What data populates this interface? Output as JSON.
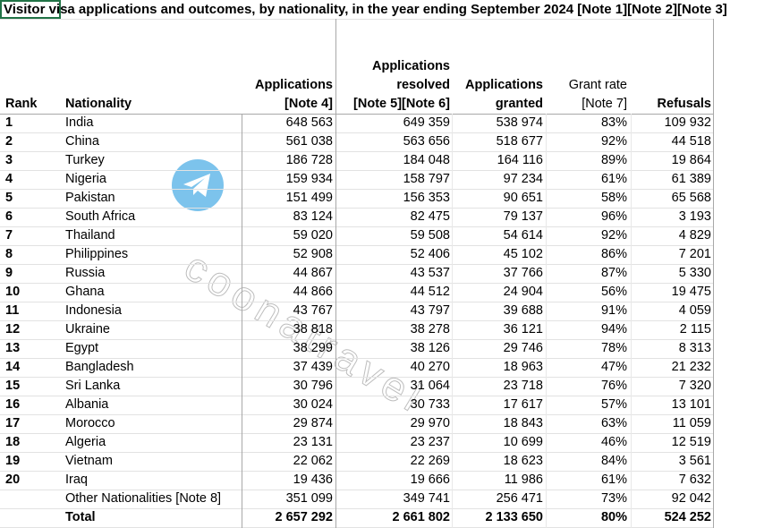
{
  "title": "Visitor visa applications and outcomes, by nationality, in the year ending September 2024 [Note 1][Note 2][Note 3]",
  "watermark": "coonatravel",
  "table": {
    "headers": [
      [
        "Rank"
      ],
      [
        "Nationality"
      ],
      [
        "Applications",
        "[Note 4]"
      ],
      [
        "Applications",
        "resolved",
        "[Note 5][Note 6]"
      ],
      [
        "Applications",
        "granted"
      ],
      [
        "Grant rate",
        "[Note 7]"
      ],
      [
        "Refusals"
      ]
    ],
    "rows": [
      [
        "1",
        "India",
        "648 563",
        "649 359",
        "538 974",
        "83%",
        "109 932"
      ],
      [
        "2",
        "China",
        "561 038",
        "563 656",
        "518 677",
        "92%",
        "44 518"
      ],
      [
        "3",
        "Turkey",
        "186 728",
        "184 048",
        "164 116",
        "89%",
        "19 864"
      ],
      [
        "4",
        "Nigeria",
        "159 934",
        "158 797",
        "97 234",
        "61%",
        "61 389"
      ],
      [
        "5",
        "Pakistan",
        "151 499",
        "156 353",
        "90 651",
        "58%",
        "65 568"
      ],
      [
        "6",
        "South Africa",
        "83 124",
        "82 475",
        "79 137",
        "96%",
        "3 193"
      ],
      [
        "7",
        "Thailand",
        "59 020",
        "59 508",
        "54 614",
        "92%",
        "4 829"
      ],
      [
        "8",
        "Philippines",
        "52 908",
        "52 406",
        "45 102",
        "86%",
        "7 201"
      ],
      [
        "9",
        "Russia",
        "44 867",
        "43 537",
        "37 766",
        "87%",
        "5 330"
      ],
      [
        "10",
        "Ghana",
        "44 866",
        "44 512",
        "24 904",
        "56%",
        "19 475"
      ],
      [
        "11",
        "Indonesia",
        "43 767",
        "43 797",
        "39 688",
        "91%",
        "4 059"
      ],
      [
        "12",
        "Ukraine",
        "38 818",
        "38 278",
        "36 121",
        "94%",
        "2 115"
      ],
      [
        "13",
        "Egypt",
        "38 299",
        "38 126",
        "29 746",
        "78%",
        "8 313"
      ],
      [
        "14",
        "Bangladesh",
        "37 439",
        "40 270",
        "18 963",
        "47%",
        "21 232"
      ],
      [
        "15",
        "Sri Lanka",
        "30 796",
        "31 064",
        "23 718",
        "76%",
        "7 320"
      ],
      [
        "16",
        "Albania",
        "30 024",
        "30 733",
        "17 617",
        "57%",
        "13 101"
      ],
      [
        "17",
        "Morocco",
        "29 874",
        "29 970",
        "18 843",
        "63%",
        "11 059"
      ],
      [
        "18",
        "Algeria",
        "23 131",
        "23 237",
        "10 699",
        "46%",
        "12 519"
      ],
      [
        "19",
        "Vietnam",
        "22 062",
        "22 269",
        "18 623",
        "84%",
        "3 561"
      ],
      [
        "20",
        "Iraq",
        "19 436",
        "19 666",
        "11 986",
        "61%",
        "7 632"
      ],
      [
        null,
        "Other Nationalities [Note 8]",
        "351 099",
        "349 741",
        "256 471",
        "73%",
        "92 042"
      ],
      [
        null,
        "Total",
        "2 657 292",
        "2 661 802",
        "2 133 650",
        "80%",
        "524 252"
      ]
    ]
  }
}
